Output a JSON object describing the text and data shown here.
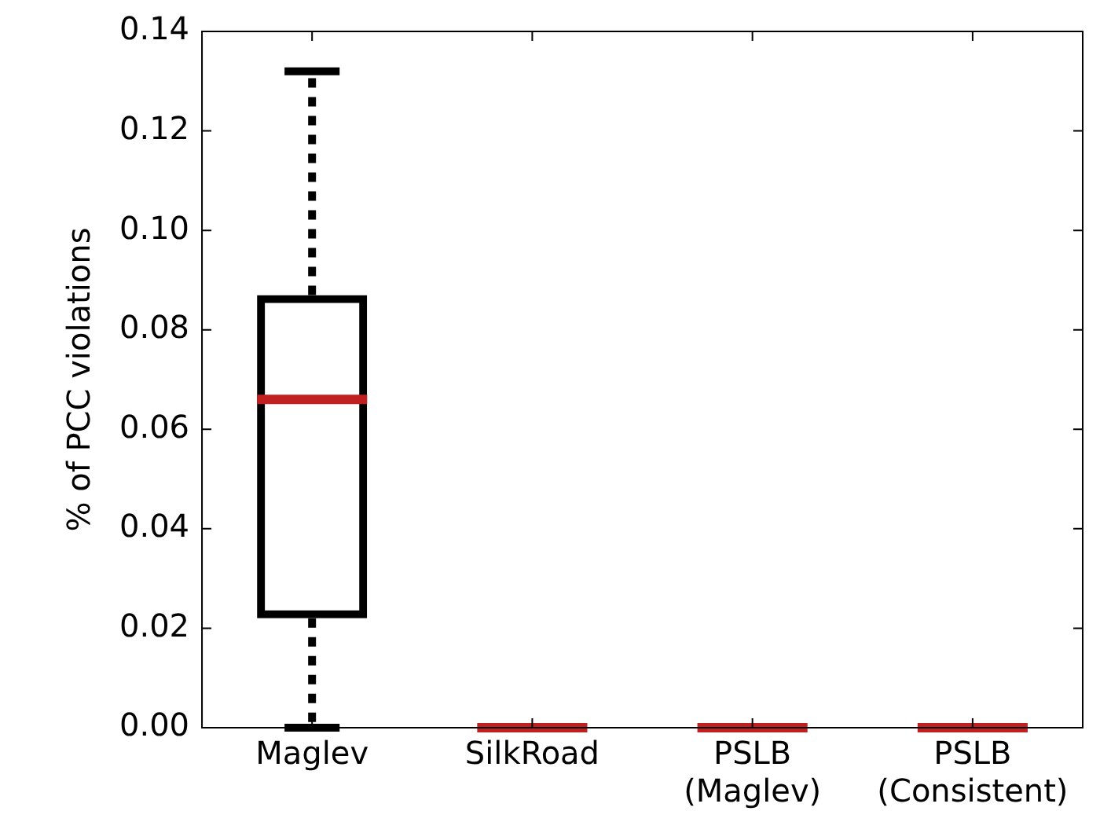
{
  "chart_data": {
    "type": "box",
    "ylabel": "% of PCC violations",
    "categories": [
      "Maglev",
      "SilkRoad",
      "PSLB\n(Maglev)",
      "PSLB\n(Consistent)"
    ],
    "boxes": [
      {
        "low": 0,
        "q1": 0.022,
        "median": 0.066,
        "q3": 0.087,
        "high": 0.132
      },
      {
        "low": 0,
        "q1": 0,
        "median": 0,
        "q3": 0,
        "high": 0
      },
      {
        "low": 0,
        "q1": 0,
        "median": 0,
        "q3": 0,
        "high": 0
      },
      {
        "low": 0,
        "q1": 0,
        "median": 0,
        "q3": 0,
        "high": 0
      }
    ],
    "colors": [
      "#000000",
      "#c0201f",
      "#c0201f",
      "#c0201f"
    ],
    "line_style": "dotted",
    "ylim": [
      0,
      0.14
    ],
    "yticks": [
      {
        "value": 0,
        "label": "0.00"
      },
      {
        "value": 0.02,
        "label": "0.02"
      },
      {
        "value": 0.04,
        "label": "0.04"
      },
      {
        "value": 0.06,
        "label": "0.06"
      },
      {
        "value": 0.08,
        "label": "0.08"
      },
      {
        "value": 0.1,
        "label": "0.10"
      },
      {
        "value": 0.12,
        "label": "0.12"
      },
      {
        "value": 0.14,
        "label": "0.14"
      }
    ],
    "grid": false,
    "legend": false
  }
}
